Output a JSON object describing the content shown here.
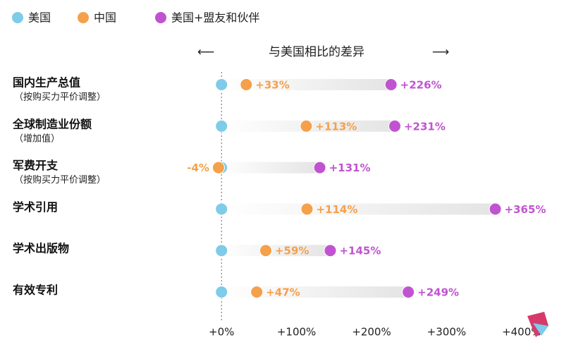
{
  "chart_data": {
    "type": "dot",
    "axis_label": "与美国相比的差异",
    "categories": [
      "国内生产总值",
      "全球制造业份额",
      "军费开支",
      "学术引用",
      "学术出版物",
      "有效专利"
    ],
    "category_notes": [
      "（按购买力平价调整）",
      "（增加值）",
      "（按购买力平价调整）",
      null,
      null,
      null
    ],
    "series": [
      {
        "name": "美国",
        "color": "#7ecbea",
        "values": [
          0,
          0,
          0,
          0,
          0,
          0
        ]
      },
      {
        "name": "中国",
        "color": "#f5a04a",
        "values": [
          33,
          113,
          -4,
          114,
          59,
          47
        ],
        "value_labels": [
          "+33%",
          "+113%",
          "-4%",
          "+114%",
          "+59%",
          "+47%"
        ]
      },
      {
        "name": "美国+盟友和伙伴",
        "color": "#c054d0",
        "values": [
          226,
          231,
          131,
          365,
          145,
          249
        ],
        "value_labels": [
          "+226%",
          "+231%",
          "+131%",
          "+365%",
          "+145%",
          "+249%"
        ]
      }
    ],
    "xlim": [
      -50,
      450
    ],
    "xticks": [
      {
        "value": 0,
        "label": "+0%"
      },
      {
        "value": 100,
        "label": "+100%"
      },
      {
        "value": 200,
        "label": "+200%"
      },
      {
        "value": 300,
        "label": "+300%"
      },
      {
        "value": 400,
        "label": "+400%"
      }
    ]
  }
}
